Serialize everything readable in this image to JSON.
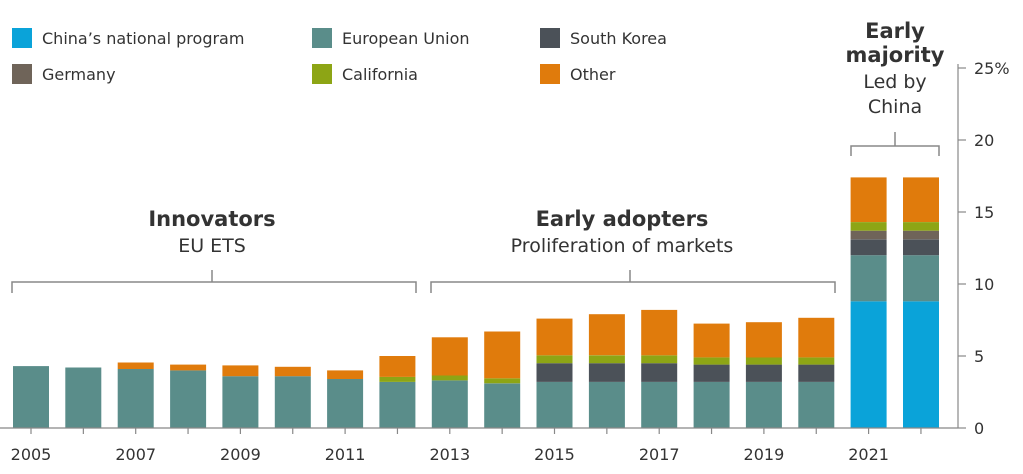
{
  "legend": {
    "items": [
      {
        "name": "China’s national program",
        "color": "#0aa3d9"
      },
      {
        "name": "European Union",
        "color": "#5a8d8a"
      },
      {
        "name": "South Korea",
        "color": "#4b5158"
      },
      {
        "name": "Germany",
        "color": "#6f6459"
      },
      {
        "name": "California",
        "color": "#8da515"
      },
      {
        "name": "Other",
        "color": "#e07b0c"
      }
    ]
  },
  "annotations": {
    "innovators": {
      "title": "Innovators",
      "subtitle": "EU ETS"
    },
    "early_adopters": {
      "title": "Early adopters",
      "subtitle": "Proliferation of markets"
    },
    "early_majority": {
      "title_line1": "Early",
      "title_line2": "majority",
      "subtitle_line1": "Led by",
      "subtitle_line2": "China"
    }
  },
  "chart_data": {
    "type": "bar",
    "stacked": true,
    "categories": [
      "2005",
      "2006",
      "2007",
      "2008",
      "2009",
      "2010",
      "2011",
      "2012",
      "2013",
      "2014",
      "2015",
      "2016",
      "2017",
      "2018",
      "2019",
      "2020",
      "2021",
      "2022"
    ],
    "x_tick_labels": [
      "2005",
      "",
      "2007",
      "",
      "2009",
      "",
      "2011",
      "",
      "2013",
      "",
      "2015",
      "",
      "2017",
      "",
      "2019",
      "",
      "2021",
      ""
    ],
    "series": [
      {
        "name": "China’s national program",
        "color": "#0aa3d9",
        "values": [
          0,
          0,
          0,
          0,
          0,
          0,
          0,
          0,
          0,
          0,
          0,
          0,
          0,
          0,
          0,
          0,
          8.8,
          8.8
        ]
      },
      {
        "name": "European Union",
        "color": "#5a8d8a",
        "values": [
          4.3,
          4.2,
          4.1,
          4.0,
          3.6,
          3.6,
          3.4,
          3.2,
          3.3,
          3.1,
          3.2,
          3.2,
          3.2,
          3.2,
          3.2,
          3.2,
          3.2,
          3.2
        ]
      },
      {
        "name": "South Korea",
        "color": "#4b5158",
        "values": [
          0,
          0,
          0,
          0,
          0,
          0,
          0,
          0,
          0,
          0,
          1.3,
          1.3,
          1.3,
          1.2,
          1.2,
          1.2,
          1.1,
          1.1
        ]
      },
      {
        "name": "Germany",
        "color": "#6f6459",
        "values": [
          0,
          0,
          0,
          0,
          0,
          0,
          0,
          0,
          0,
          0,
          0,
          0,
          0,
          0,
          0,
          0,
          0.6,
          0.6
        ]
      },
      {
        "name": "California",
        "color": "#8da515",
        "values": [
          0,
          0,
          0,
          0,
          0,
          0,
          0,
          0.35,
          0.35,
          0.35,
          0.55,
          0.55,
          0.55,
          0.5,
          0.5,
          0.5,
          0.6,
          0.6
        ]
      },
      {
        "name": "Other",
        "color": "#e07b0c",
        "values": [
          0,
          0,
          0.45,
          0.4,
          0.75,
          0.65,
          0.6,
          1.45,
          2.65,
          3.25,
          2.55,
          2.85,
          3.15,
          2.35,
          2.45,
          2.75,
          3.1,
          3.1
        ]
      }
    ],
    "ylim": [
      0,
      25
    ],
    "y_ticks": [
      0,
      5,
      10,
      15,
      20,
      25
    ],
    "y_tick_labels": [
      "0",
      "5",
      "10",
      "15",
      "20",
      "25%"
    ],
    "grid": false
  }
}
